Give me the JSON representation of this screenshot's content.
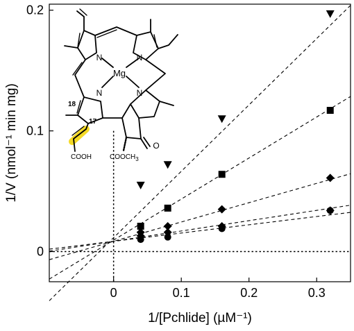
{
  "chart_data": {
    "type": "scatter",
    "xlabel": "1/[Pchlide] (µM⁻¹)",
    "ylabel": "1/V (nmol⁻¹ min mg)",
    "xlim": [
      -0.095,
      0.35
    ],
    "ylim": [
      -0.025,
      0.205
    ],
    "x_ticks": [
      "0",
      "0.1",
      "0.2",
      "0.3"
    ],
    "x_tick_values": [
      0,
      0.1,
      0.2,
      0.3
    ],
    "y_ticks": [
      "0",
      "0.1",
      "0.2"
    ],
    "y_tick_values": [
      0,
      0.1,
      0.2
    ],
    "grid": false,
    "zero_lines": "dotted",
    "series": [
      {
        "marker": "triangle-down",
        "x": [
          0.04,
          0.08,
          0.16,
          0.32
        ],
        "y": [
          0.055,
          0.072,
          0.11,
          0.197
        ],
        "fit": {
          "slope": 0.55,
          "intercept": 0.0115
        }
      },
      {
        "marker": "square",
        "x": [
          0.04,
          0.08,
          0.16,
          0.32
        ],
        "y": [
          0.021,
          0.036,
          0.064,
          0.117
        ],
        "fit": {
          "slope": 0.34,
          "intercept": 0.0095
        }
      },
      {
        "marker": "diamond",
        "x": [
          0.04,
          0.08,
          0.16,
          0.32
        ],
        "y": [
          0.016,
          0.021,
          0.035,
          0.061
        ],
        "fit": {
          "slope": 0.16,
          "intercept": 0.0085
        }
      },
      {
        "marker": "diamond",
        "x": [
          0.04,
          0.08,
          0.16,
          0.32
        ],
        "y": [
          0.013,
          0.016,
          0.021,
          0.034
        ],
        "fit": {
          "slope": 0.0855,
          "intercept": 0.0085
        }
      },
      {
        "marker": "circle",
        "x": [
          0.04,
          0.08,
          0.16,
          0.32
        ],
        "y": [
          0.01,
          0.012,
          0.019,
          0.034
        ],
        "fit": {
          "slope": 0.0685,
          "intercept": 0.0085
        }
      }
    ]
  },
  "molecule": {
    "metal": "Mg",
    "nitrogen": "N",
    "oxygen": "O",
    "locant_18": "18",
    "locant_17": "17",
    "acid_group": "COOH",
    "ester_group": "COOCH",
    "ester_subscript": "3",
    "highlight_color": "#f2d400"
  }
}
